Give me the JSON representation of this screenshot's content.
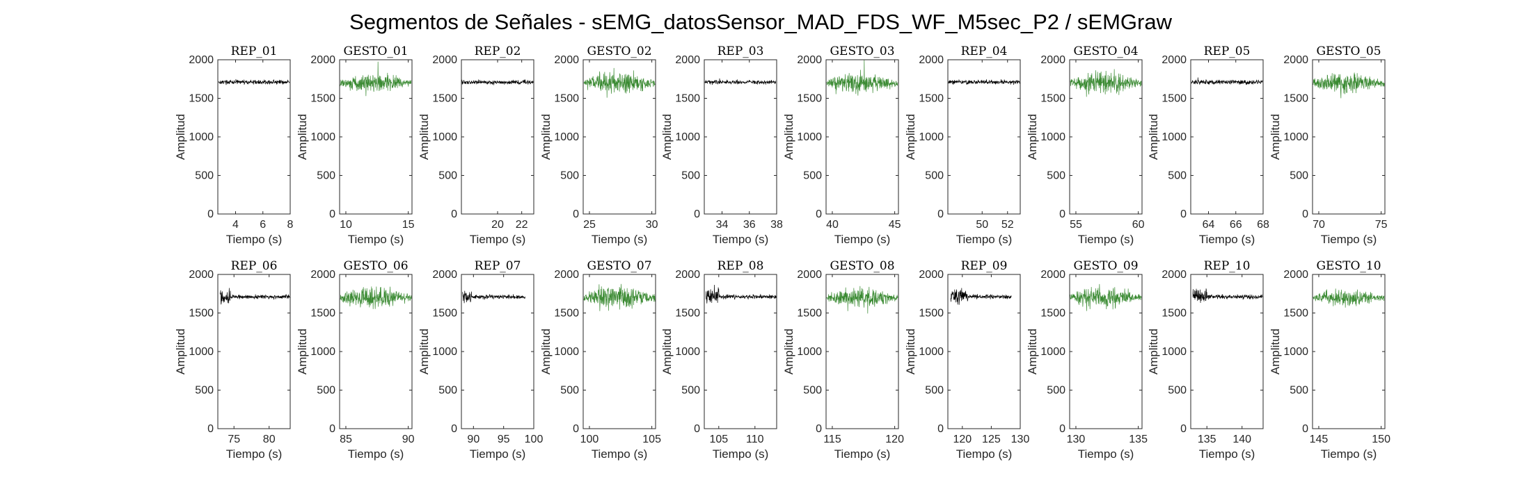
{
  "chart_data": {
    "type": "line",
    "title": "Segmentos de Señales - sEMG_datosSensor_MAD_FDS_WF_M5sec_P2 / sEMGraw",
    "colors": {
      "rep": "#000000",
      "gesto": "#3a8a32"
    },
    "subplots": [
      {
        "title": "REP_01",
        "kind": "rep",
        "xlabel": "Tiempo (s)",
        "ylabel": "Amplitud",
        "xlim": [
          2.7,
          8
        ],
        "xticks": [
          4,
          6,
          8
        ],
        "ylim": [
          0,
          2000
        ],
        "yticks": [
          0,
          500,
          1000,
          1500,
          2000
        ],
        "baseline": 1710,
        "amplitude": 40,
        "burst": []
      },
      {
        "title": "GESTO_01",
        "kind": "gesto",
        "xlabel": "Tiempo (s)",
        "ylabel": "Amplitud",
        "xlim": [
          9.5,
          15.3
        ],
        "xticks": [
          10,
          15
        ],
        "ylim": [
          0,
          2000
        ],
        "yticks": [
          0,
          500,
          1000,
          1500,
          2000
        ],
        "baseline": 1700,
        "amplitude": 190,
        "burst": []
      },
      {
        "title": "REP_02",
        "kind": "rep",
        "xlabel": "Tiempo (s)",
        "ylabel": "Amplitud",
        "xlim": [
          17,
          23
        ],
        "xticks": [
          20,
          22
        ],
        "ylim": [
          0,
          2000
        ],
        "yticks": [
          0,
          500,
          1000,
          1500,
          2000
        ],
        "baseline": 1710,
        "amplitude": 40,
        "burst": []
      },
      {
        "title": "GESTO_02",
        "kind": "gesto",
        "xlabel": "Tiempo (s)",
        "ylabel": "Amplitud",
        "xlim": [
          24.5,
          30.3
        ],
        "xticks": [
          25,
          30
        ],
        "ylim": [
          0,
          2000
        ],
        "yticks": [
          0,
          500,
          1000,
          1500,
          2000
        ],
        "baseline": 1700,
        "amplitude": 240,
        "burst": []
      },
      {
        "title": "REP_03",
        "kind": "rep",
        "xlabel": "Tiempo (s)",
        "ylabel": "Amplitud",
        "xlim": [
          32.7,
          38
        ],
        "xticks": [
          34,
          36,
          38
        ],
        "ylim": [
          0,
          2000
        ],
        "yticks": [
          0,
          500,
          1000,
          1500,
          2000
        ],
        "baseline": 1710,
        "amplitude": 40,
        "burst": []
      },
      {
        "title": "GESTO_03",
        "kind": "gesto",
        "xlabel": "Tiempo (s)",
        "ylabel": "Amplitud",
        "xlim": [
          39.5,
          45.3
        ],
        "xticks": [
          40,
          45
        ],
        "ylim": [
          0,
          2000
        ],
        "yticks": [
          0,
          500,
          1000,
          1500,
          2000
        ],
        "baseline": 1700,
        "amplitude": 220,
        "burst": []
      },
      {
        "title": "REP_04",
        "kind": "rep",
        "xlabel": "Tiempo (s)",
        "ylabel": "Amplitud",
        "xlim": [
          47.3,
          53
        ],
        "xticks": [
          50,
          52
        ],
        "ylim": [
          0,
          2000
        ],
        "yticks": [
          0,
          500,
          1000,
          1500,
          2000
        ],
        "baseline": 1710,
        "amplitude": 40,
        "burst": []
      },
      {
        "title": "GESTO_04",
        "kind": "gesto",
        "xlabel": "Tiempo (s)",
        "ylabel": "Amplitud",
        "xlim": [
          54.5,
          60.3
        ],
        "xticks": [
          55,
          60
        ],
        "ylim": [
          0,
          2000
        ],
        "yticks": [
          0,
          500,
          1000,
          1500,
          2000
        ],
        "baseline": 1700,
        "amplitude": 210,
        "burst": []
      },
      {
        "title": "REP_05",
        "kind": "rep",
        "xlabel": "Tiempo (s)",
        "ylabel": "Amplitud",
        "xlim": [
          62.7,
          68
        ],
        "xticks": [
          64,
          66,
          68
        ],
        "ylim": [
          0,
          2000
        ],
        "yticks": [
          0,
          500,
          1000,
          1500,
          2000
        ],
        "baseline": 1710,
        "amplitude": 40,
        "burst": []
      },
      {
        "title": "GESTO_05",
        "kind": "gesto",
        "xlabel": "Tiempo (s)",
        "ylabel": "Amplitud",
        "xlim": [
          69.5,
          75.3
        ],
        "xticks": [
          70,
          75
        ],
        "ylim": [
          0,
          2000
        ],
        "yticks": [
          0,
          500,
          1000,
          1500,
          2000
        ],
        "baseline": 1700,
        "amplitude": 200,
        "burst": []
      },
      {
        "title": "REP_06",
        "kind": "rep",
        "xlabel": "Tiempo (s)",
        "ylabel": "Amplitud",
        "xlim": [
          72.7,
          83
        ],
        "xticks": [
          75,
          80
        ],
        "ylim": [
          0,
          2000
        ],
        "yticks": [
          0,
          500,
          1000,
          1500,
          2000
        ],
        "baseline": 1710,
        "amplitude": 40,
        "burst": [
          73,
          74.5
        ]
      },
      {
        "title": "GESTO_06",
        "kind": "gesto",
        "xlabel": "Tiempo (s)",
        "ylabel": "Amplitud",
        "xlim": [
          84.5,
          90.3
        ],
        "xticks": [
          85,
          90
        ],
        "ylim": [
          0,
          2000
        ],
        "yticks": [
          0,
          500,
          1000,
          1500,
          2000
        ],
        "baseline": 1700,
        "amplitude": 220,
        "burst": []
      },
      {
        "title": "REP_07",
        "kind": "rep",
        "xlabel": "Tiempo (s)",
        "ylabel": "Amplitud",
        "xlim": [
          88,
          100
        ],
        "xticks": [
          90,
          95,
          100
        ],
        "ylim": [
          0,
          2000
        ],
        "yticks": [
          0,
          500,
          1000,
          1500,
          2000
        ],
        "baseline": 1710,
        "amplitude": 40,
        "burst": [
          88.2,
          89.7
        ]
      },
      {
        "title": "GESTO_07",
        "kind": "gesto",
        "xlabel": "Tiempo (s)",
        "ylabel": "Amplitud",
        "xlim": [
          99.5,
          105.3
        ],
        "xticks": [
          100,
          105
        ],
        "ylim": [
          0,
          2000
        ],
        "yticks": [
          0,
          500,
          1000,
          1500,
          2000
        ],
        "baseline": 1700,
        "amplitude": 230,
        "burst": []
      },
      {
        "title": "REP_08",
        "kind": "rep",
        "xlabel": "Tiempo (s)",
        "ylabel": "Amplitud",
        "xlim": [
          103,
          113
        ],
        "xticks": [
          105,
          110
        ],
        "ylim": [
          0,
          2000
        ],
        "yticks": [
          0,
          500,
          1000,
          1500,
          2000
        ],
        "baseline": 1710,
        "amplitude": 40,
        "burst": [
          103.2,
          105
        ]
      },
      {
        "title": "GESTO_08",
        "kind": "gesto",
        "xlabel": "Tiempo (s)",
        "ylabel": "Amplitud",
        "xlim": [
          114.5,
          120.3
        ],
        "xticks": [
          115,
          120
        ],
        "ylim": [
          0,
          2000
        ],
        "yticks": [
          0,
          500,
          1000,
          1500,
          2000
        ],
        "baseline": 1700,
        "amplitude": 190,
        "burst": []
      },
      {
        "title": "REP_09",
        "kind": "rep",
        "xlabel": "Tiempo (s)",
        "ylabel": "Amplitud",
        "xlim": [
          117.5,
          130
        ],
        "xticks": [
          120,
          125,
          130
        ],
        "ylim": [
          0,
          2000
        ],
        "yticks": [
          0,
          500,
          1000,
          1500,
          2000
        ],
        "baseline": 1710,
        "amplitude": 40,
        "burst": [
          118,
          121
        ]
      },
      {
        "title": "GESTO_09",
        "kind": "gesto",
        "xlabel": "Tiempo (s)",
        "ylabel": "Amplitud",
        "xlim": [
          129.5,
          135.3
        ],
        "xticks": [
          130,
          135
        ],
        "ylim": [
          0,
          2000
        ],
        "yticks": [
          0,
          500,
          1000,
          1500,
          2000
        ],
        "baseline": 1700,
        "amplitude": 190,
        "burst": []
      },
      {
        "title": "REP_10",
        "kind": "rep",
        "xlabel": "Tiempo (s)",
        "ylabel": "Amplitud",
        "xlim": [
          132.7,
          143
        ],
        "xticks": [
          135,
          140
        ],
        "ylim": [
          0,
          2000
        ],
        "yticks": [
          0,
          500,
          1000,
          1500,
          2000
        ],
        "baseline": 1710,
        "amplitude": 40,
        "burst": [
          133,
          135
        ]
      },
      {
        "title": "GESTO_10",
        "kind": "gesto",
        "xlabel": "Tiempo (s)",
        "ylabel": "Amplitud",
        "xlim": [
          144.5,
          150.3
        ],
        "xticks": [
          145,
          150
        ],
        "ylim": [
          0,
          2000
        ],
        "yticks": [
          0,
          500,
          1000,
          1500,
          2000
        ],
        "baseline": 1700,
        "amplitude": 160,
        "burst": []
      }
    ]
  }
}
